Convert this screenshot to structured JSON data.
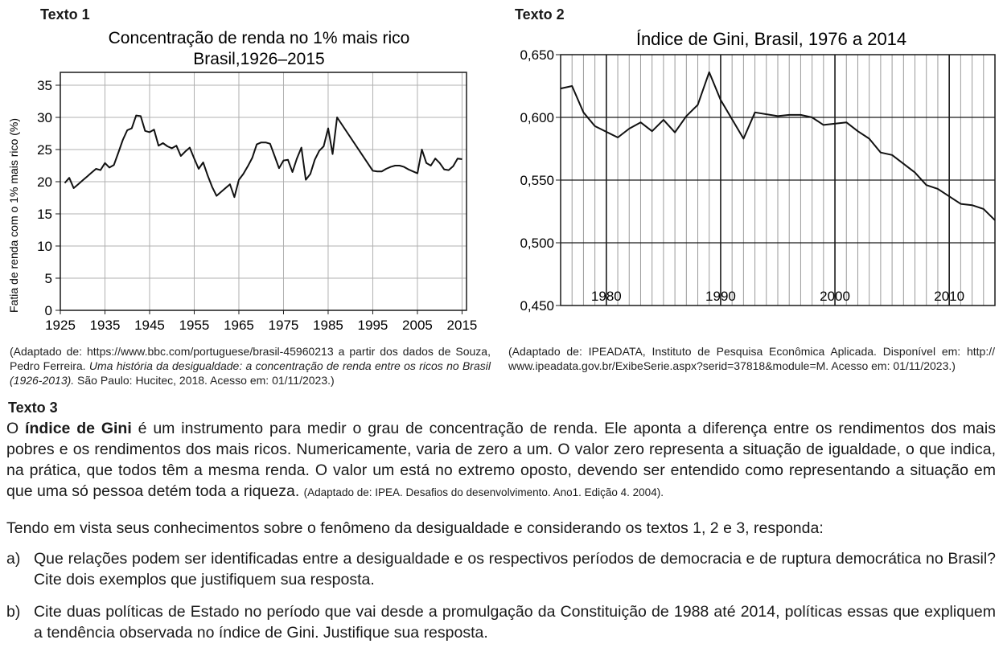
{
  "texto1": {
    "heading": "Texto 1",
    "source_prefix": "(Adaptado de: https://www.bbc.com/portuguese/brasil-45960213 a partir dos dados de Souza, Pedro Ferreira. ",
    "source_italic": "Uma história da desigualdade: a concentração de renda entre os ricos no Brasil (1926-2013).",
    "source_suffix": " São Paulo: Hucitec, 2018. Acesso em: 01/11/2023.)"
  },
  "texto2": {
    "heading": "Texto 2",
    "source": "(Adaptado de: IPEADATA, Instituto de Pesquisa Econômica Aplicada. Disponível em: http:// www.ipeadata.gov.br/ExibeSerie.aspx?serid=37818&module=M. Acesso em: 01/11/2023.)"
  },
  "texto3": {
    "heading": "Texto 3",
    "lead": "O ",
    "bold": "índice de Gini",
    "body": " é um instrumento para medir o grau de concentração de renda. Ele aponta a diferença entre os rendimentos dos mais pobres e os rendimentos dos mais ricos. Numericamente, varia de zero a um. O valor zero representa a situação de igualdade, o que indica, na prática, que todos têm a mesma renda. O valor um está no extremo oposto, devendo ser entendido como representando a situação em que uma só pessoa detém toda a riqueza. ",
    "source": "(Adaptado de: IPEA. Desafios do desenvolvimento. Ano1. Edição 4. 2004)."
  },
  "prompt": "Tendo em vista seus conhecimentos sobre o fenômeno da desigualdade e considerando os textos 1, 2 e 3, responda:",
  "questions": [
    {
      "letter": "a)",
      "text": "Que relações podem ser identificadas entre a desigualdade e os respectivos períodos de democracia e de ruptura democrática no Brasil? Cite dois exemplos que justifiquem sua resposta."
    },
    {
      "letter": "b)",
      "text": "Cite duas políticas de Estado no período que vai desde a promulgação da Constituição de 1988 até 2014, políticas essas que expliquem a tendência observada no índice de Gini. Justifique sua resposta."
    }
  ],
  "chart_data": [
    {
      "type": "line",
      "title": "Concentração de renda no 1% mais rico",
      "subtitle": "Brasil,1926–2015",
      "xlabel": "",
      "ylabel": "Fatia de renda com o 1% mais rico (%)",
      "xlim": [
        1925,
        2016
      ],
      "ylim": [
        0,
        37
      ],
      "xticks": [
        "1925",
        "1935",
        "1945",
        "1955",
        "1965",
        "1975",
        "1985",
        "1995",
        "2005",
        "2015"
      ],
      "yticks": [
        "0",
        "5",
        "10",
        "15",
        "20",
        "25",
        "30",
        "35"
      ],
      "grid": true,
      "x": [
        1926,
        1927,
        1928,
        1929,
        1930,
        1931,
        1932,
        1933,
        1934,
        1935,
        1936,
        1937,
        1938,
        1939,
        1940,
        1941,
        1942,
        1943,
        1944,
        1945,
        1946,
        1947,
        1948,
        1949,
        1950,
        1951,
        1952,
        1953,
        1954,
        1955,
        1956,
        1957,
        1958,
        1959,
        1960,
        1961,
        1962,
        1963,
        1964,
        1965,
        1966,
        1967,
        1968,
        1969,
        1970,
        1971,
        1972,
        1973,
        1974,
        1975,
        1976,
        1977,
        1978,
        1979,
        1980,
        1981,
        1982,
        1983,
        1984,
        1985,
        1986,
        1987,
        1995,
        1996,
        1997,
        1998,
        1999,
        2000,
        2001,
        2002,
        2003,
        2004,
        2005,
        2006,
        2007,
        2008,
        2009,
        2010,
        2011,
        2012,
        2013,
        2014,
        2015
      ],
      "y": [
        19.8,
        20.6,
        19.0,
        19.6,
        20.2,
        20.8,
        21.4,
        22.0,
        21.8,
        22.9,
        22.2,
        22.6,
        24.5,
        26.5,
        28.0,
        28.3,
        30.3,
        30.2,
        27.9,
        27.7,
        28.1,
        25.6,
        26.0,
        25.5,
        25.2,
        25.6,
        24.0,
        24.7,
        25.3,
        23.6,
        22.0,
        23.0,
        21.0,
        19.2,
        17.8,
        18.4,
        19.0,
        19.6,
        17.6,
        20.3,
        21.2,
        22.4,
        23.7,
        25.8,
        26.1,
        26.1,
        25.9,
        24.0,
        22.1,
        23.3,
        23.4,
        21.5,
        23.6,
        25.3,
        20.3,
        21.2,
        23.4,
        24.8,
        25.5,
        28.3,
        24.3,
        30.0,
        21.7,
        21.6,
        21.6,
        22.0,
        22.3,
        22.5,
        22.5,
        22.3,
        21.9,
        21.6,
        21.3,
        25.0,
        22.9,
        22.5,
        23.6,
        22.9,
        21.9,
        21.8,
        22.4,
        23.6,
        23.5
      ]
    },
    {
      "type": "line",
      "title": "Índice de Gini, Brasil, 1976 a 2014",
      "xlabel": "",
      "ylabel": "",
      "xlim": [
        1976,
        2014
      ],
      "ylim": [
        0.45,
        0.65
      ],
      "xticks": [
        "1980",
        "1990",
        "2000",
        "2010"
      ],
      "yticks": [
        "0,450",
        "0,500",
        "0,550",
        "0,600",
        "0,650"
      ],
      "grid": true,
      "x": [
        1976,
        1977,
        1978,
        1979,
        1981,
        1982,
        1983,
        1984,
        1985,
        1986,
        1987,
        1988,
        1989,
        1990,
        1992,
        1993,
        1995,
        1996,
        1997,
        1998,
        1999,
        2001,
        2002,
        2003,
        2004,
        2005,
        2006,
        2007,
        2008,
        2009,
        2011,
        2012,
        2013,
        2014
      ],
      "y": [
        0.623,
        0.625,
        0.604,
        0.593,
        0.584,
        0.591,
        0.596,
        0.589,
        0.598,
        0.588,
        0.601,
        0.61,
        0.636,
        0.614,
        0.583,
        0.604,
        0.601,
        0.602,
        0.602,
        0.6,
        0.594,
        0.596,
        0.589,
        0.583,
        0.572,
        0.57,
        0.563,
        0.556,
        0.546,
        0.543,
        0.531,
        0.53,
        0.527,
        0.518
      ]
    }
  ]
}
